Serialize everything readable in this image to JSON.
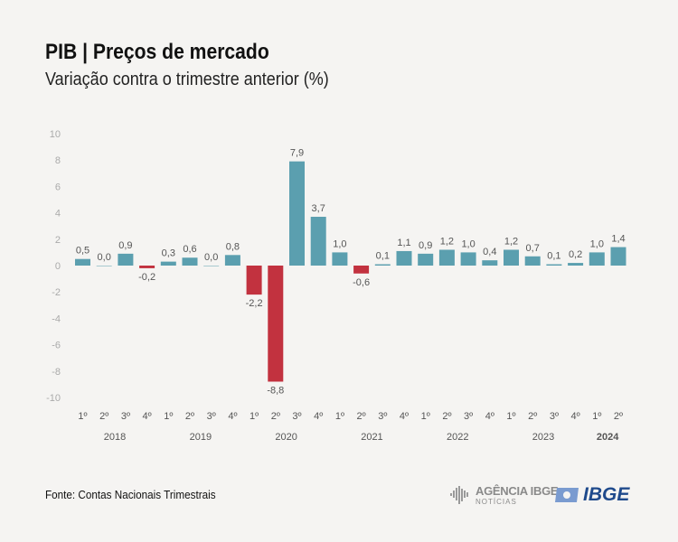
{
  "header": {
    "title": "PIB | Preços de mercado",
    "subtitle": "Variação contra o trimestre anterior (%)"
  },
  "footer": {
    "source": "Fonte: Contas Nacionais Trimestrais",
    "agencia_line1": "AGÊNCIA IBGE",
    "agencia_line2": "NOTÍCIAS",
    "ibge_logo": "IBGE"
  },
  "chart_data": {
    "type": "bar",
    "title": "PIB | Preços de mercado",
    "subtitle": "Variação contra o trimestre anterior (%)",
    "ylim": [
      -10,
      10
    ],
    "yticks": [
      10,
      8,
      6,
      4,
      2,
      0,
      -2,
      -4,
      -6,
      -8,
      -10
    ],
    "categories": [
      "1º",
      "2º",
      "3º",
      "4º",
      "1º",
      "2º",
      "3º",
      "4º",
      "1º",
      "2º",
      "3º",
      "4º",
      "1º",
      "2º",
      "3º",
      "4º",
      "1º",
      "2º",
      "3º",
      "4º",
      "1º",
      "2º",
      "3º",
      "4º",
      "1º",
      "2º"
    ],
    "years": [
      "2018",
      "2019",
      "2020",
      "2021",
      "2022",
      "2023",
      "2024"
    ],
    "values": [
      0.5,
      0.0,
      0.9,
      -0.2,
      0.3,
      0.6,
      0.0,
      0.8,
      -2.2,
      -8.8,
      7.9,
      3.7,
      1.0,
      -0.6,
      0.1,
      1.1,
      0.9,
      1.2,
      1.0,
      0.4,
      1.2,
      0.7,
      0.1,
      0.2,
      1.0,
      1.4
    ],
    "labels": [
      "0,5",
      "0,0",
      "0,9",
      "-0,2",
      "0,3",
      "0,6",
      "0,0",
      "0,8",
      "-2,2",
      "-8,8",
      "7,9",
      "3,7",
      "1,0",
      "-0,6",
      "0,1",
      "1,1",
      "0,9",
      "1,2",
      "1,0",
      "0,4",
      "1,2",
      "0,7",
      "0,1",
      "0,2",
      "1,0",
      "1,4"
    ],
    "colors": {
      "positive": "#5b9faf",
      "negative": "#c2323f"
    },
    "grid": false,
    "legend": "none"
  }
}
